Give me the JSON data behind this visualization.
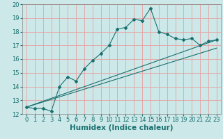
{
  "title": "",
  "xlabel": "Humidex (Indice chaleur)",
  "ylabel": "",
  "bg_color": "#cce8e8",
  "grid_color": "#e8a0a0",
  "line_color": "#1a7070",
  "spine_color": "#888888",
  "xlim": [
    -0.5,
    23.5
  ],
  "ylim": [
    12,
    20
  ],
  "xticks": [
    0,
    1,
    2,
    3,
    4,
    5,
    6,
    7,
    8,
    9,
    10,
    11,
    12,
    13,
    14,
    15,
    16,
    17,
    18,
    19,
    20,
    21,
    22,
    23
  ],
  "yticks": [
    12,
    13,
    14,
    15,
    16,
    17,
    18,
    19,
    20
  ],
  "main_x": [
    0,
    1,
    2,
    3,
    4,
    5,
    6,
    7,
    8,
    9,
    10,
    11,
    12,
    13,
    14,
    15,
    16,
    17,
    18,
    19,
    20,
    21,
    22,
    23
  ],
  "main_y": [
    12.5,
    12.4,
    12.4,
    12.2,
    14.0,
    14.7,
    14.4,
    15.3,
    15.9,
    16.4,
    17.0,
    18.2,
    18.3,
    18.9,
    18.8,
    19.7,
    18.0,
    17.8,
    17.5,
    17.4,
    17.5,
    17.0,
    17.3,
    17.4
  ],
  "line2_x": [
    0,
    23
  ],
  "line2_y": [
    12.5,
    16.8
  ],
  "line3_x": [
    0,
    23
  ],
  "line3_y": [
    12.5,
    17.4
  ],
  "xlabel_fontsize": 7.5,
  "tick_fontsize": 6.0
}
